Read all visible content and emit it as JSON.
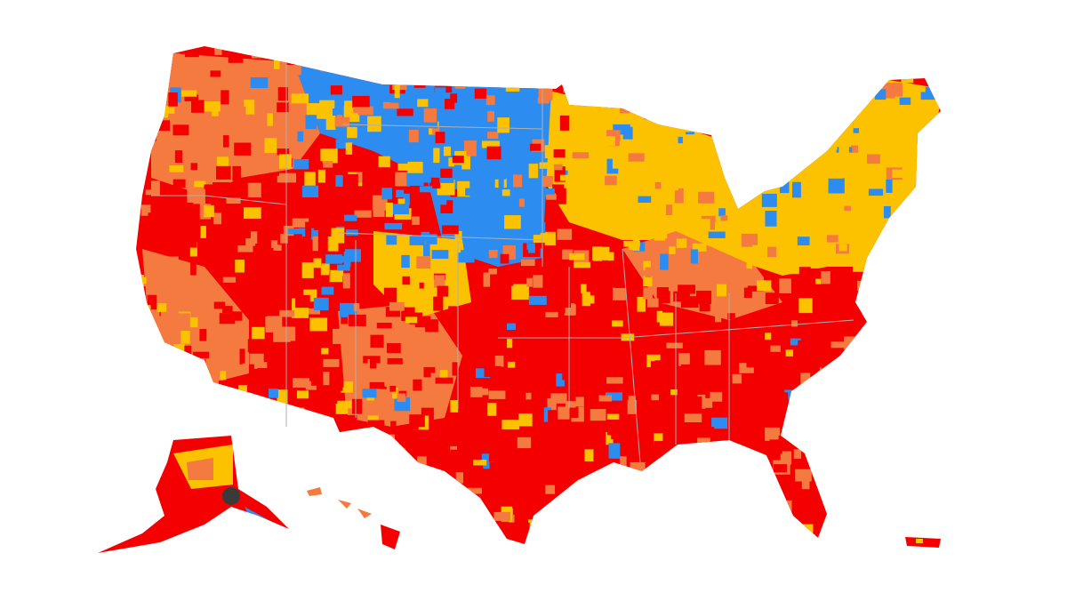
{
  "map": {
    "colors": [
      "#f40000",
      "#f47a40",
      "#fcc200",
      "#2d8cf0",
      "#b0b0b0",
      "#3a3a3a"
    ]
  }
}
